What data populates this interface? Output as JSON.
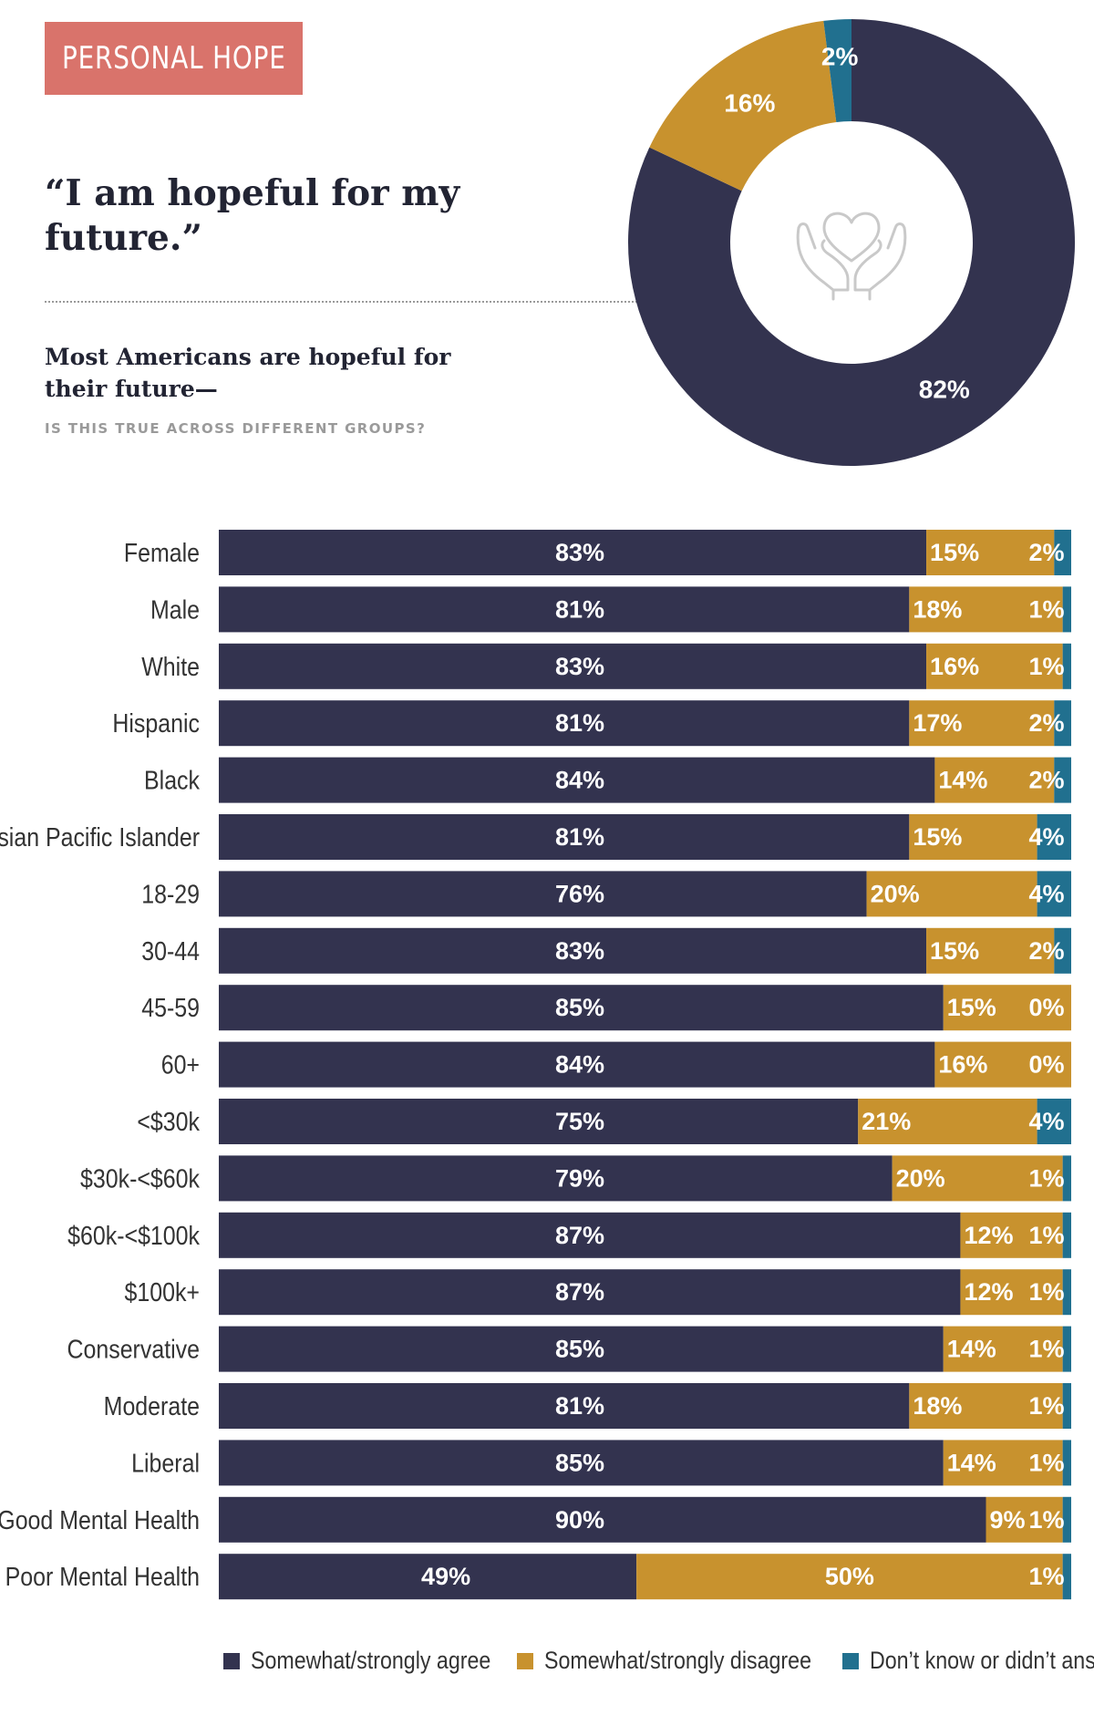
{
  "header": {
    "badge_label": "PERSONAL HOPE",
    "quote": "“I am hopeful for my future.”",
    "subhead": "Most Americans are hopeful for their future—",
    "question": "IS THIS TRUE ACROSS DIFFERENT GROUPS?"
  },
  "colors": {
    "agree": "#33334f",
    "disagree": "#c8922e",
    "dont_know": "#21708f",
    "badge": "#d9736b"
  },
  "icons": {
    "donut_center": "heart-in-hands-icon"
  },
  "legend": {
    "agree": "Somewhat/strongly agree",
    "disagree": "Somewhat/strongly disagree",
    "dont_know": "Don’t know or didn’t answer"
  },
  "chart_data": [
    {
      "type": "pie",
      "donut": true,
      "labels": [
        "Somewhat/strongly agree",
        "Somewhat/strongly disagree",
        "Don’t know or didn’t answer"
      ],
      "values": [
        82,
        16,
        2
      ],
      "value_labels": [
        "82%",
        "16%",
        "2%"
      ]
    },
    {
      "type": "bar",
      "orientation": "horizontal",
      "stacked": true,
      "categories": [
        "Female",
        "Male",
        "White",
        "Hispanic",
        "Black",
        "Asian Pacific Islander",
        "18-29",
        "30-44",
        "45-59",
        "60+",
        "<$30k",
        "$30k-<$60k",
        "$60k-<$100k",
        "$100k+",
        "Conservative",
        "Moderate",
        "Liberal",
        "Good Mental Health",
        "Poor Mental Health"
      ],
      "series": [
        {
          "name": "Somewhat/strongly agree",
          "values": [
            83,
            81,
            83,
            81,
            84,
            81,
            76,
            83,
            85,
            84,
            75,
            79,
            87,
            87,
            85,
            81,
            85,
            90,
            49
          ]
        },
        {
          "name": "Somewhat/strongly disagree",
          "values": [
            15,
            18,
            16,
            17,
            14,
            15,
            20,
            15,
            15,
            16,
            21,
            20,
            12,
            12,
            14,
            18,
            14,
            9,
            50
          ]
        },
        {
          "name": "Don’t know or didn’t answer",
          "values": [
            2,
            1,
            1,
            2,
            2,
            4,
            4,
            2,
            0,
            0,
            4,
            1,
            1,
            1,
            1,
            1,
            1,
            1,
            1
          ]
        }
      ],
      "xlim": [
        0,
        100
      ],
      "legend": "bottom"
    }
  ]
}
